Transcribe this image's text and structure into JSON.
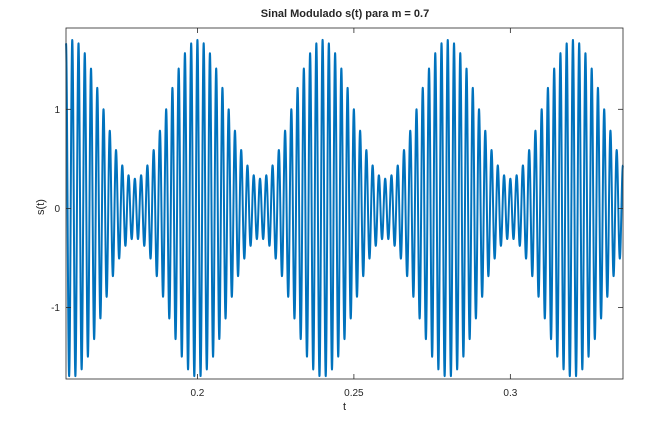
{
  "chart_data": {
    "type": "line",
    "title": "Sinal Modulado s(t) para m = 0.7",
    "xlabel": "t",
    "ylabel": "s(t)",
    "xlim": [
      0.158,
      0.336
    ],
    "ylim": [
      -1.72,
      1.82
    ],
    "xticks": [
      0.2,
      0.25,
      0.3
    ],
    "xtick_labels": [
      "0.2",
      "0.25",
      "0.3"
    ],
    "yticks": [
      -1,
      0,
      1
    ],
    "ytick_labels": [
      "-1",
      "0",
      "1"
    ],
    "grid": false,
    "legend": "none",
    "series": [
      {
        "color": "#0072BD",
        "function": "s(t) = (1 + m*cos(2*pi*fm*t)) * cos(2*pi*fc*t)",
        "m": 0.7,
        "fm": 25,
        "fc": 500,
        "t_start": 0.158,
        "t_end": 0.336
      }
    ]
  }
}
